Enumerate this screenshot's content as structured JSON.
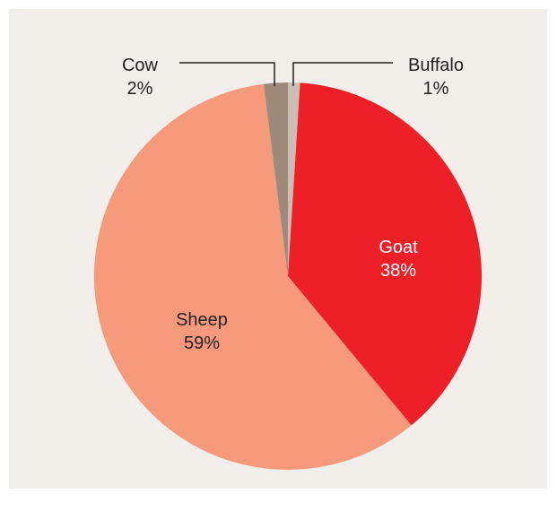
{
  "chart_data": {
    "type": "pie",
    "start_angle_deg": 0,
    "direction": "clockwise",
    "slices": [
      {
        "label": "Buffalo",
        "value": 1,
        "value_label": "1%",
        "color": "#c9bfb4",
        "label_color": "#222222"
      },
      {
        "label": "Goat",
        "value": 38,
        "value_label": "38%",
        "color": "#ee1f26",
        "label_color": "#ffffff"
      },
      {
        "label": "Sheep",
        "value": 59,
        "value_label": "59%",
        "color": "#f79a7b",
        "label_color": "#222222"
      },
      {
        "label": "Cow",
        "value": 2,
        "value_label": "2%",
        "color": "#9d8a7a",
        "label_color": "#222222"
      }
    ],
    "colors": {
      "background": "#f2eeea",
      "leader_line": "#222222"
    }
  }
}
